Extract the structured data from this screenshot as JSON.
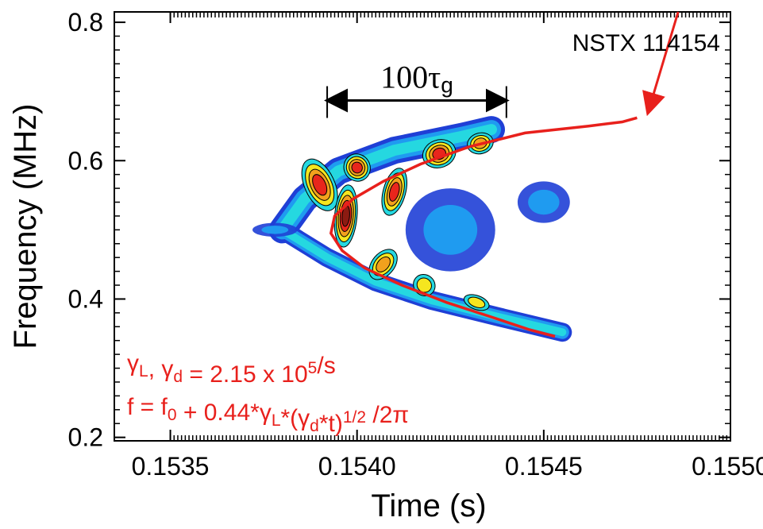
{
  "chart_data": {
    "type": "heatmap",
    "xlabel": "Time (s)",
    "ylabel": "Frequency (MHz)",
    "xlim": [
      0.15335,
      0.155
    ],
    "ylim": [
      0.195,
      0.815
    ],
    "x_ticks": [
      0.1535,
      0.154,
      0.1545,
      0.155
    ],
    "x_tick_labels": [
      "0.1535",
      "0.1540",
      "0.1545",
      "0.1550"
    ],
    "y_ticks": [
      0.2,
      0.4,
      0.6,
      0.8
    ],
    "y_tick_labels": [
      "0.2",
      "0.4",
      "0.6",
      "0.8"
    ],
    "grid": false,
    "label_shot": "NSTX 114154",
    "scale_bar": {
      "label_main": "100τ",
      "label_sub": "g",
      "x_start": 0.15392,
      "x_end": 0.1544,
      "y": 0.687
    },
    "fit_curve": {
      "name": "fit",
      "color": "#e8201c",
      "points": [
        [
          0.15453,
          0.346
        ],
        [
          0.15446,
          0.356
        ],
        [
          0.15436,
          0.374
        ],
        [
          0.15424,
          0.395
        ],
        [
          0.15412,
          0.42
        ],
        [
          0.15402,
          0.445
        ],
        [
          0.15396,
          0.47
        ],
        [
          0.15393,
          0.495
        ],
        [
          0.15394,
          0.52
        ],
        [
          0.15399,
          0.545
        ],
        [
          0.15407,
          0.57
        ],
        [
          0.15417,
          0.595
        ],
        [
          0.1543,
          0.62
        ],
        [
          0.15445,
          0.64
        ],
        [
          0.15462,
          0.65
        ],
        [
          0.15471,
          0.656
        ],
        [
          0.15475,
          0.662
        ]
      ]
    },
    "arrow_to_fit": {
      "from": [
        0.15486,
        0.815
      ],
      "to": [
        0.15478,
        0.671
      ]
    },
    "formula_line1": {
      "parts": [
        {
          "t": "γ",
          "sub": "L"
        },
        {
          "t": ", "
        },
        {
          "t": "γ",
          "sub": "d"
        },
        {
          "t": " = 2.15 x 10",
          "sup": "5"
        },
        {
          "t": "/s"
        }
      ]
    },
    "formula_line2": {
      "parts": [
        {
          "t": "f = f",
          "sub": "0"
        },
        {
          "t": " + 0.44*"
        },
        {
          "t": "γ",
          "sub": "L"
        },
        {
          "t": "*("
        },
        {
          "t": "γ",
          "sub": "d"
        },
        {
          "t": "*t)",
          "sup": "1/2"
        },
        {
          "t": " /2π"
        }
      ]
    },
    "contour_colors": [
      "#1f3fd6",
      "#1f9bf0",
      "#25d8e0",
      "#f5e61f",
      "#f2a11d",
      "#e8261c",
      "#8c1b12"
    ],
    "spectrogram_blobs": [
      {
        "x": 0.1539,
        "y": 0.565,
        "rx": 4e-05,
        "ry": 0.04,
        "rot": -25,
        "level": 6
      },
      {
        "x": 0.15397,
        "y": 0.52,
        "rx": 3e-05,
        "ry": 0.045,
        "rot": 5,
        "level": 7
      },
      {
        "x": 0.154,
        "y": 0.59,
        "rx": 3.5e-05,
        "ry": 0.02,
        "rot": -30,
        "level": 6
      },
      {
        "x": 0.1541,
        "y": 0.555,
        "rx": 3e-05,
        "ry": 0.035,
        "rot": 15,
        "level": 6
      },
      {
        "x": 0.15422,
        "y": 0.61,
        "rx": 4.5e-05,
        "ry": 0.02,
        "rot": -20,
        "level": 6
      },
      {
        "x": 0.15433,
        "y": 0.625,
        "rx": 3.5e-05,
        "ry": 0.015,
        "rot": -15,
        "level": 5
      },
      {
        "x": 0.15407,
        "y": 0.45,
        "rx": 3e-05,
        "ry": 0.025,
        "rot": 40,
        "level": 5
      },
      {
        "x": 0.15418,
        "y": 0.42,
        "rx": 3e-05,
        "ry": 0.015,
        "rot": 40,
        "level": 4
      },
      {
        "x": 0.15432,
        "y": 0.395,
        "rx": 3.5e-05,
        "ry": 0.01,
        "rot": 20,
        "level": 4
      }
    ],
    "annotations": [
      "NSTX 114154",
      "100τg"
    ]
  }
}
